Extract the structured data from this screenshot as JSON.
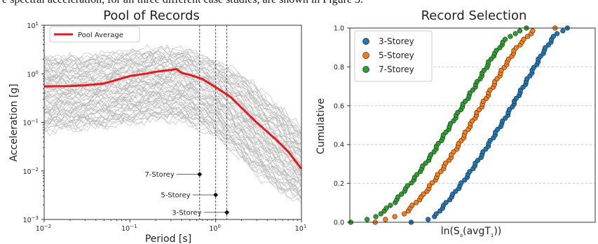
{
  "caption_fragment": "e spectral acceleration, for all three different case studies, are shown in Figure 3.",
  "chart_data": [
    {
      "type": "line",
      "title": "Pool of Records",
      "xlabel": "Period [s]",
      "ylabel": "Acceleration [g]",
      "xscale": "log",
      "yscale": "log",
      "xlim": [
        0.01,
        10
      ],
      "ylim": [
        0.001,
        10
      ],
      "x_ticks": [
        {
          "v": 0.01,
          "base": "10",
          "exp": "−2"
        },
        {
          "v": 0.1,
          "base": "10",
          "exp": "−1"
        },
        {
          "v": 1,
          "base": "10",
          "exp": "0"
        },
        {
          "v": 10,
          "base": "10",
          "exp": "1"
        }
      ],
      "y_ticks": [
        {
          "v": 0.001,
          "base": "10",
          "exp": "−3"
        },
        {
          "v": 0.01,
          "base": "10",
          "exp": "−2"
        },
        {
          "v": 0.1,
          "base": "10",
          "exp": "−1"
        },
        {
          "v": 1,
          "base": "10",
          "exp": "0"
        },
        {
          "v": 10,
          "base": "10",
          "exp": "1"
        }
      ],
      "legend": {
        "placement": "top-left",
        "entries": [
          "Pool Average"
        ]
      },
      "colors": {
        "average": "#e31a1c",
        "records": "#b5b5b5"
      },
      "average": {
        "name": "Pool Average",
        "x": [
          0.01,
          0.02,
          0.03,
          0.05,
          0.07,
          0.1,
          0.15,
          0.2,
          0.3,
          0.35,
          0.4,
          0.5,
          0.7,
          1.0,
          1.5,
          2.0,
          3.0,
          5.0,
          7.0,
          10.0
        ],
        "y": [
          0.55,
          0.56,
          0.58,
          0.63,
          0.75,
          0.9,
          1.0,
          1.1,
          1.2,
          1.25,
          1.05,
          0.95,
          0.78,
          0.53,
          0.33,
          0.2,
          0.1,
          0.045,
          0.025,
          0.011
        ]
      },
      "records_band": {
        "x": [
          0.01,
          0.03,
          0.1,
          0.2,
          0.35,
          0.5,
          1.0,
          2.0,
          3.0,
          5.0,
          10.0
        ],
        "upper": [
          3.5,
          3.6,
          4.5,
          5.0,
          5.2,
          4.5,
          3.0,
          1.6,
          0.9,
          0.4,
          0.12
        ],
        "lower": [
          0.035,
          0.04,
          0.05,
          0.06,
          0.06,
          0.05,
          0.025,
          0.008,
          0.004,
          0.002,
          0.0012
        ]
      },
      "vlines": [
        {
          "label": "7-Storey",
          "x": 0.65,
          "marker_y": 0.0085
        },
        {
          "label": "5-Storey",
          "x": 1.0,
          "marker_y": 0.0032
        },
        {
          "label": "3-Storey",
          "x": 1.35,
          "marker_y": 0.0014
        }
      ]
    },
    {
      "type": "scatter",
      "title": "Record Selection",
      "xlabel": "ln(S_a(avgT_1))",
      "ylabel": "Cumulative",
      "ylim": [
        0,
        1
      ],
      "xlim": [
        0,
        1
      ],
      "x_ticks": [],
      "y_ticks": [
        "0.0",
        "0.2",
        "0.4",
        "0.6",
        "0.8",
        "1.0"
      ],
      "grid": "horizontal-dashed",
      "legend": {
        "placement": "top-left",
        "entries": [
          "3-Storey",
          "5-Storey",
          "7-Storey"
        ]
      },
      "series": [
        {
          "name": "3-Storey",
          "color": "#1f77b4",
          "points": [
            [
              0.25,
              0.0
            ],
            [
              0.34,
              0.02
            ],
            [
              0.42,
              0.14
            ],
            [
              0.48,
              0.24
            ],
            [
              0.54,
              0.35
            ],
            [
              0.59,
              0.45
            ],
            [
              0.64,
              0.55
            ],
            [
              0.69,
              0.66
            ],
            [
              0.74,
              0.77
            ],
            [
              0.79,
              0.88
            ],
            [
              0.84,
              0.97
            ],
            [
              0.89,
              1.0
            ]
          ]
        },
        {
          "name": "5-Storey",
          "color": "#ff7f0e",
          "points": [
            [
              0.1,
              0.0
            ],
            [
              0.22,
              0.04
            ],
            [
              0.3,
              0.14
            ],
            [
              0.37,
              0.26
            ],
            [
              0.44,
              0.39
            ],
            [
              0.5,
              0.52
            ],
            [
              0.56,
              0.65
            ],
            [
              0.62,
              0.78
            ],
            [
              0.68,
              0.9
            ],
            [
              0.75,
              0.99
            ],
            [
              0.84,
              1.0
            ]
          ]
        },
        {
          "name": "7-Storey",
          "color": "#2ca02c",
          "points": [
            [
              0.0,
              0.0
            ],
            [
              0.1,
              0.02
            ],
            [
              0.18,
              0.1
            ],
            [
              0.26,
              0.22
            ],
            [
              0.33,
              0.34
            ],
            [
              0.4,
              0.48
            ],
            [
              0.46,
              0.6
            ],
            [
              0.52,
              0.72
            ],
            [
              0.58,
              0.85
            ],
            [
              0.64,
              0.95
            ],
            [
              0.72,
              1.0
            ]
          ]
        }
      ]
    }
  ]
}
